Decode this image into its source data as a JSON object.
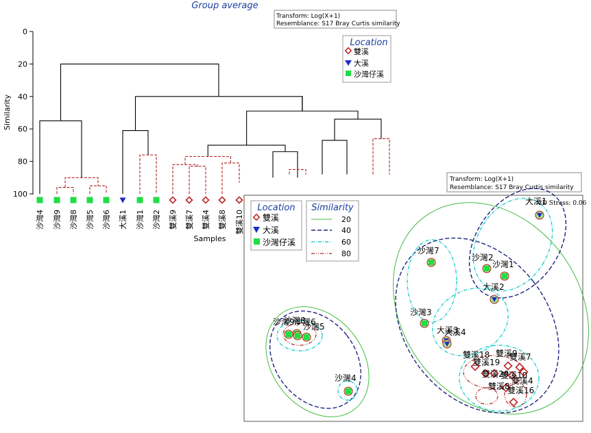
{
  "dendrogram": {
    "title": "Group average",
    "transform_box": [
      "Transform: Log(X+1)",
      "Resemblance: S17 Bray Curtis similarity"
    ],
    "ylabel": "Similarity",
    "xlabel": "Samples",
    "yticks": [
      "0",
      "20",
      "40",
      "60",
      "80",
      "100"
    ],
    "legend_title": "Location",
    "legend_items": [
      "雙溪",
      "大溪",
      "沙灣仔溪"
    ]
  },
  "mds": {
    "transform_box": [
      "Transform: Log(X+1)",
      "Resemblance: S17 Bray Curtis similarity"
    ],
    "stress_label": "2D Stress: 0.06",
    "legend_location_title": "Location",
    "legend_location_items": [
      "雙溪",
      "大溪",
      "沙灣仔溪"
    ],
    "legend_similarity_title": "Similarity",
    "legend_similarity_items": [
      "20",
      "40",
      "60",
      "80"
    ]
  },
  "colors": {
    "shuangxi": "#c0282a",
    "daxi": "#1a2ec8",
    "shawanzai": "#22dd44",
    "sim20": "#44bb44",
    "sim40": "#1a237e",
    "sim60": "#22cccc",
    "sim80": "#b02020",
    "title": "#1a3ea0"
  },
  "chart_data": [
    {
      "type": "dendrogram",
      "title": "Group average",
      "xlabel": "Samples",
      "ylabel": "Similarity",
      "ylim": [
        0,
        100
      ],
      "leaves": [
        {
          "label": "沙灣4",
          "group": "沙灣仔溪"
        },
        {
          "label": "沙灣9",
          "group": "沙灣仔溪"
        },
        {
          "label": "沙灣8",
          "group": "沙灣仔溪"
        },
        {
          "label": "沙灣5",
          "group": "沙灣仔溪"
        },
        {
          "label": "沙灣6",
          "group": "沙灣仔溪"
        },
        {
          "label": "大溪1",
          "group": "大溪"
        },
        {
          "label": "沙灣1",
          "group": "沙灣仔溪"
        },
        {
          "label": "沙灣2",
          "group": "沙灣仔溪"
        },
        {
          "label": "雙溪9",
          "group": "雙溪"
        },
        {
          "label": "雙溪7",
          "group": "雙溪"
        },
        {
          "label": "雙溪4",
          "group": "雙溪"
        },
        {
          "label": "雙溪8",
          "group": "雙溪"
        },
        {
          "label": "雙溪10",
          "group": "雙溪"
        }
      ],
      "merges": [
        {
          "left": "沙灣9",
          "right": "沙灣8",
          "similarity": 96
        },
        {
          "left": "沙灣5",
          "right": "沙灣6",
          "similarity": 95
        },
        {
          "left": "沙灣9+沙灣8",
          "right": "沙灣5+沙灣6",
          "similarity": 90
        },
        {
          "left": "沙灣4",
          "right": "沙灣9-6",
          "similarity": 55
        },
        {
          "left": "沙灣1",
          "right": "沙灣2",
          "similarity": 76
        },
        {
          "left": "大溪1",
          "right": "沙灣1+沙灣2",
          "similarity": 61
        },
        {
          "left": "雙溪7",
          "right": "雙溪4",
          "similarity": 83
        },
        {
          "left": "雙溪9",
          "right": "雙溪7+雙溪4",
          "similarity": 82
        },
        {
          "left": "left 沙灣 cluster",
          "right": "right cluster",
          "similarity": 20
        }
      ],
      "legend": [
        "雙溪",
        "大溪",
        "沙灣仔溪"
      ]
    },
    {
      "type": "scatter",
      "subtype": "nMDS",
      "stress": 0.06,
      "legend": [
        "雙溪",
        "大溪",
        "沙灣仔溪"
      ],
      "similarity_contours": [
        20,
        40,
        60,
        80
      ],
      "points": [
        {
          "label": "大溪1",
          "group": "大溪"
        },
        {
          "label": "沙灣2",
          "group": "沙灣仔溪"
        },
        {
          "label": "沙灣1",
          "group": "沙灣仔溪"
        },
        {
          "label": "大溪2",
          "group": "大溪"
        },
        {
          "label": "沙灣7",
          "group": "沙灣仔溪"
        },
        {
          "label": "沙灣3",
          "group": "沙灣仔溪"
        },
        {
          "label": "大溪3",
          "group": "大溪"
        },
        {
          "label": "大溪4",
          "group": "大溪"
        },
        {
          "label": "沙灣9",
          "group": "沙灣仔溪"
        },
        {
          "label": "沙灣8",
          "group": "沙灣仔溪"
        },
        {
          "label": "沙灣6",
          "group": "沙灣仔溪"
        },
        {
          "label": "沙灣5",
          "group": "沙灣仔溪"
        },
        {
          "label": "沙灣4",
          "group": "沙灣仔溪"
        },
        {
          "label": "雙溪18",
          "group": "雙溪"
        },
        {
          "label": "雙溪19",
          "group": "雙溪"
        },
        {
          "label": "雙溪20",
          "group": "雙溪"
        },
        {
          "label": "雙溪9",
          "group": "雙溪"
        },
        {
          "label": "雙溪7",
          "group": "雙溪"
        },
        {
          "label": "雙溪4",
          "group": "雙溪"
        },
        {
          "label": "雙溪10",
          "group": "雙溪"
        },
        {
          "label": "雙溪8",
          "group": "雙溪"
        },
        {
          "label": "雙溪16",
          "group": "雙溪"
        }
      ]
    }
  ]
}
